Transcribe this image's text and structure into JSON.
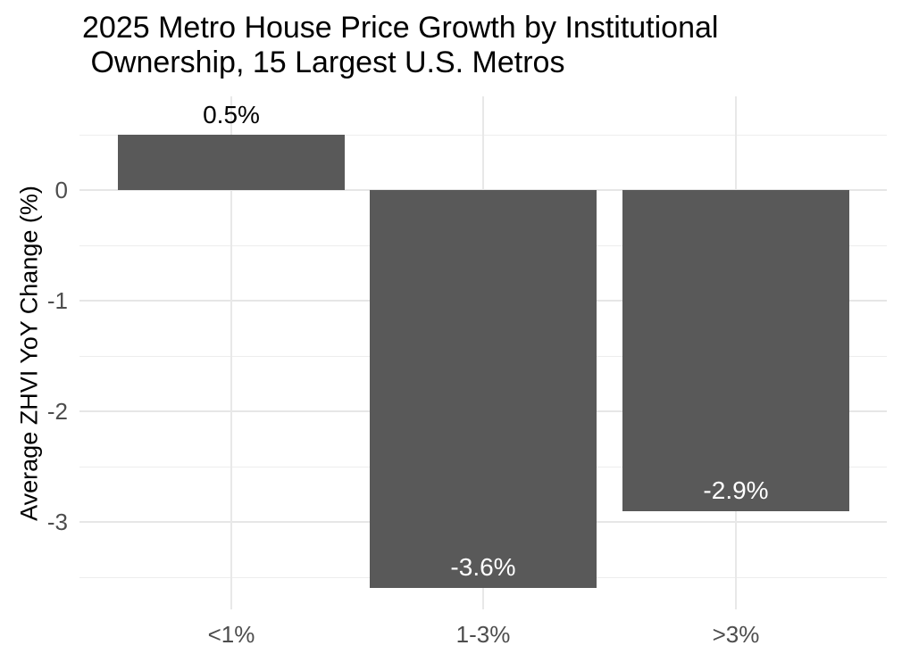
{
  "title": {
    "lines": [
      "2025 Metro House Price Growth by Institutional",
      " Ownership, 15 Largest U.S. Metros"
    ]
  },
  "chart_data": {
    "type": "bar",
    "title": "2025 Metro House Price Growth by Institutional Ownership, 15 Largest U.S. Metros",
    "categories": [
      "<1%",
      "1-3%",
      ">3%"
    ],
    "values": [
      0.5,
      -3.6,
      -2.9
    ],
    "bar_labels": [
      "0.5%",
      "-3.6%",
      "-2.9%"
    ],
    "bar_label_colors": [
      "#000000",
      "#ffffff",
      "#ffffff"
    ],
    "xlabel": "",
    "ylabel": "Average ZHVI YoY Change (%)",
    "ylim": [
      -3.805,
      0.85
    ],
    "yticks": [
      0,
      -1,
      -2,
      -3
    ],
    "ytick_labels": [
      "0",
      "-1",
      "-2",
      "-3"
    ],
    "yticks_minor": [
      0.5,
      -0.5,
      -1.5,
      -2.5,
      -3.5
    ],
    "grid": true,
    "legend": false,
    "bar_color": "#595959",
    "background_color": "#ffffff",
    "gridline_color": "#ebebeb",
    "tick_label_color": "#4d4d4d"
  }
}
